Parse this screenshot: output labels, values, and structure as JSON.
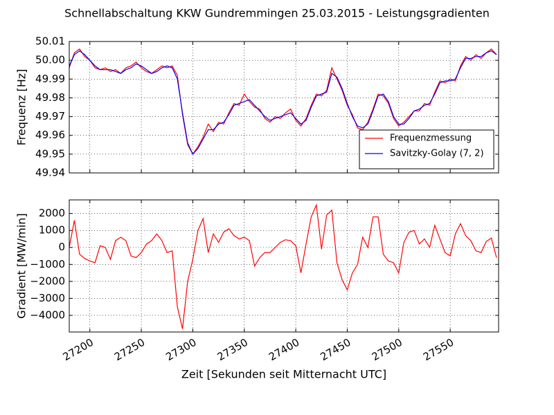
{
  "chart_data": [
    {
      "type": "line",
      "title": "Schnellabschaltung KKW Gundremmingen 25.03.2015 - Leistungsgradienten",
      "ylabel": "Frequenz [Hz]",
      "x": [
        27180,
        27185,
        27190,
        27195,
        27200,
        27205,
        27210,
        27215,
        27220,
        27225,
        27230,
        27235,
        27240,
        27245,
        27250,
        27255,
        27260,
        27265,
        27270,
        27275,
        27280,
        27285,
        27290,
        27295,
        27300,
        27305,
        27310,
        27315,
        27320,
        27325,
        27330,
        27335,
        27340,
        27345,
        27350,
        27355,
        27360,
        27365,
        27370,
        27375,
        27380,
        27385,
        27390,
        27395,
        27400,
        27405,
        27410,
        27415,
        27420,
        27425,
        27430,
        27435,
        27440,
        27445,
        27450,
        27455,
        27460,
        27465,
        27470,
        27475,
        27480,
        27485,
        27490,
        27495,
        27500,
        27505,
        27510,
        27515,
        27520,
        27525,
        27530,
        27535,
        27540,
        27545,
        27550,
        27555,
        27560,
        27565,
        27570,
        27575,
        27580,
        27585,
        27590,
        27595
      ],
      "series": [
        {
          "name": "Frequenzmessung",
          "color": "#ff0000",
          "values": [
            49.996,
            50.004,
            50.006,
            50.002,
            50.0,
            49.996,
            49.995,
            49.996,
            49.994,
            49.995,
            49.993,
            49.996,
            49.997,
            49.999,
            49.996,
            49.994,
            49.993,
            49.995,
            49.997,
            49.996,
            49.997,
            49.992,
            49.971,
            49.955,
            49.95,
            49.954,
            49.959,
            49.966,
            49.962,
            49.967,
            49.966,
            49.972,
            49.977,
            49.976,
            49.982,
            49.978,
            49.975,
            49.974,
            49.969,
            49.967,
            49.97,
            49.969,
            49.972,
            49.974,
            49.968,
            49.965,
            49.969,
            49.976,
            49.982,
            49.981,
            49.984,
            49.996,
            49.99,
            49.984,
            49.976,
            49.971,
            49.964,
            49.963,
            49.967,
            49.974,
            49.982,
            49.981,
            49.977,
            49.969,
            49.965,
            49.967,
            49.97,
            49.973,
            49.973,
            49.977,
            49.976,
            49.983,
            49.989,
            49.988,
            49.99,
            49.989,
            49.997,
            50.002,
            50.0,
            50.003,
            50.001,
            50.004,
            50.006,
            50.003
          ]
        },
        {
          "name": "Savitzky-Golay (7, 2)",
          "color": "#0000ff",
          "values": [
            49.997,
            50.003,
            50.005,
            50.003,
            50.0,
            49.997,
            49.995,
            49.995,
            49.995,
            49.994,
            49.993,
            49.995,
            49.996,
            49.998,
            49.997,
            49.995,
            49.993,
            49.994,
            49.996,
            49.997,
            49.996,
            49.99,
            49.972,
            49.956,
            49.95,
            49.953,
            49.958,
            49.963,
            49.963,
            49.966,
            49.967,
            49.971,
            49.976,
            49.977,
            49.978,
            49.979,
            49.976,
            49.973,
            49.97,
            49.968,
            49.969,
            49.97,
            49.971,
            49.972,
            49.969,
            49.966,
            49.968,
            49.975,
            49.981,
            49.982,
            49.983,
            49.993,
            49.991,
            49.985,
            49.977,
            49.97,
            49.965,
            49.964,
            49.966,
            49.973,
            49.981,
            49.982,
            49.978,
            49.97,
            49.966,
            49.966,
            49.969,
            49.973,
            49.974,
            49.976,
            49.977,
            49.982,
            49.988,
            49.989,
            49.989,
            49.99,
            49.996,
            50.001,
            50.001,
            50.002,
            50.002,
            50.004,
            50.005,
            50.003
          ]
        }
      ],
      "xlim": [
        27180,
        27597
      ],
      "xticks": [
        27200,
        27250,
        27300,
        27350,
        27400,
        27450,
        27500,
        27550
      ],
      "ylim": [
        49.94,
        50.01
      ],
      "yticks": [
        49.94,
        49.95,
        49.96,
        49.97,
        49.98,
        49.99,
        {
          "value": 50,
          "label": "50.00"
        },
        50.01
      ],
      "grid": true,
      "legend": "lower right"
    },
    {
      "type": "line",
      "xlabel": "Zeit [Sekunden seit Mitternacht UTC]",
      "ylabel": "Gradient [MW/min]",
      "x": [
        27180,
        27185,
        27190,
        27195,
        27200,
        27205,
        27210,
        27215,
        27220,
        27225,
        27230,
        27235,
        27240,
        27245,
        27250,
        27255,
        27260,
        27265,
        27270,
        27275,
        27280,
        27285,
        27290,
        27295,
        27300,
        27305,
        27310,
        27315,
        27320,
        27325,
        27330,
        27335,
        27340,
        27345,
        27350,
        27355,
        27360,
        27365,
        27370,
        27375,
        27380,
        27385,
        27390,
        27395,
        27400,
        27405,
        27410,
        27415,
        27420,
        27425,
        27430,
        27435,
        27440,
        27445,
        27450,
        27455,
        27460,
        27465,
        27470,
        27475,
        27480,
        27485,
        27490,
        27495,
        27500,
        27505,
        27510,
        27515,
        27520,
        27525,
        27530,
        27535,
        27540,
        27545,
        27550,
        27555,
        27560,
        27565,
        27570,
        27575,
        27580,
        27585,
        27590,
        27595
      ],
      "series": [
        {
          "color": "#ff0000",
          "values": [
            0,
            1600,
            -400,
            -650,
            -800,
            -900,
            100,
            0,
            -700,
            400,
            600,
            400,
            -500,
            -600,
            -300,
            200,
            400,
            800,
            400,
            -300,
            -200,
            -3500,
            -4800,
            -2000,
            -700,
            1000,
            1700,
            -300,
            800,
            300,
            900,
            1100,
            700,
            500,
            600,
            400,
            -1100,
            -600,
            -300,
            -300,
            0,
            300,
            450,
            400,
            100,
            -1500,
            200,
            1800,
            2500,
            -100,
            1900,
            2200,
            -900,
            -1900,
            -2500,
            -1500,
            -1000,
            600,
            0,
            1800,
            1800,
            -400,
            -800,
            -900,
            -1500,
            300,
            900,
            1000,
            200,
            500,
            0,
            1300,
            500,
            -300,
            -500,
            800,
            1400,
            700,
            400,
            -200,
            -300,
            350,
            550,
            -600
          ]
        }
      ],
      "xlim": [
        27180,
        27597
      ],
      "xticks": [
        27200,
        27250,
        27300,
        27350,
        27400,
        27450,
        27500,
        27550
      ],
      "ylim": [
        -4980,
        2800
      ],
      "yticks": [
        {
          "value": -4000,
          "label": "−4000"
        },
        {
          "value": -3000,
          "label": "−3000"
        },
        {
          "value": -2000,
          "label": "−2000"
        },
        {
          "value": -1000,
          "label": "−1000"
        },
        0,
        1000,
        2000
      ],
      "grid": true
    }
  ]
}
